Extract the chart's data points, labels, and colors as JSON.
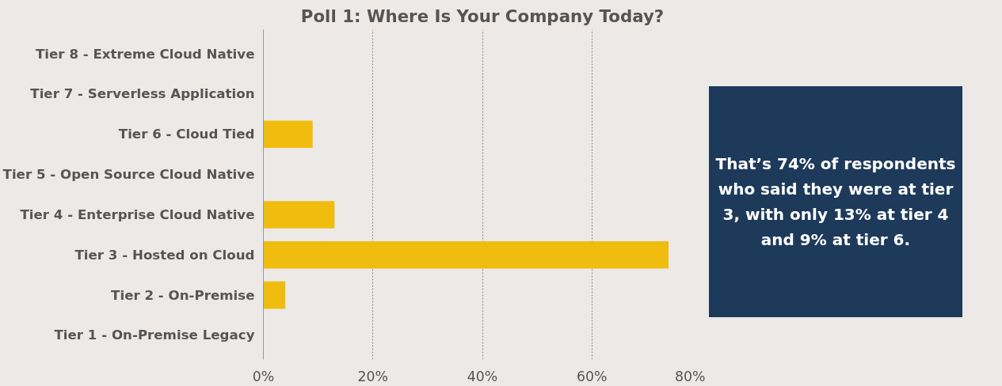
{
  "chart_data": {
    "type": "bar",
    "orientation": "horizontal",
    "title": "Poll 1: Where Is Your Company Today?",
    "categories": [
      "Tier 8 - Extreme Cloud Native",
      "Tier 7 - Serverless Application",
      "Tier 6 - Cloud Tied",
      "Tier 5 - Open Source Cloud Native",
      "Tier 4 - Enterprise Cloud Native",
      "Tier 3 - Hosted on Cloud",
      "Tier 2 - On-Premise",
      "Tier 1 - On-Premise Legacy"
    ],
    "values": [
      0,
      0,
      9,
      0,
      13,
      74,
      4,
      0
    ],
    "color": "#f0bd0f",
    "xlim": [
      0,
      80
    ],
    "xticks": [
      {
        "value": 0,
        "label": "0%"
      },
      {
        "value": 20,
        "label": "20%"
      },
      {
        "value": 40,
        "label": "40%"
      },
      {
        "value": 60,
        "label": "60%"
      },
      {
        "value": 80,
        "label": "80%"
      }
    ],
    "grid": "x",
    "annotations": [
      "That’s 74% of respondents who said they were at tier 3, with only 13% at tier 4 and 9% at tier 6."
    ]
  }
}
